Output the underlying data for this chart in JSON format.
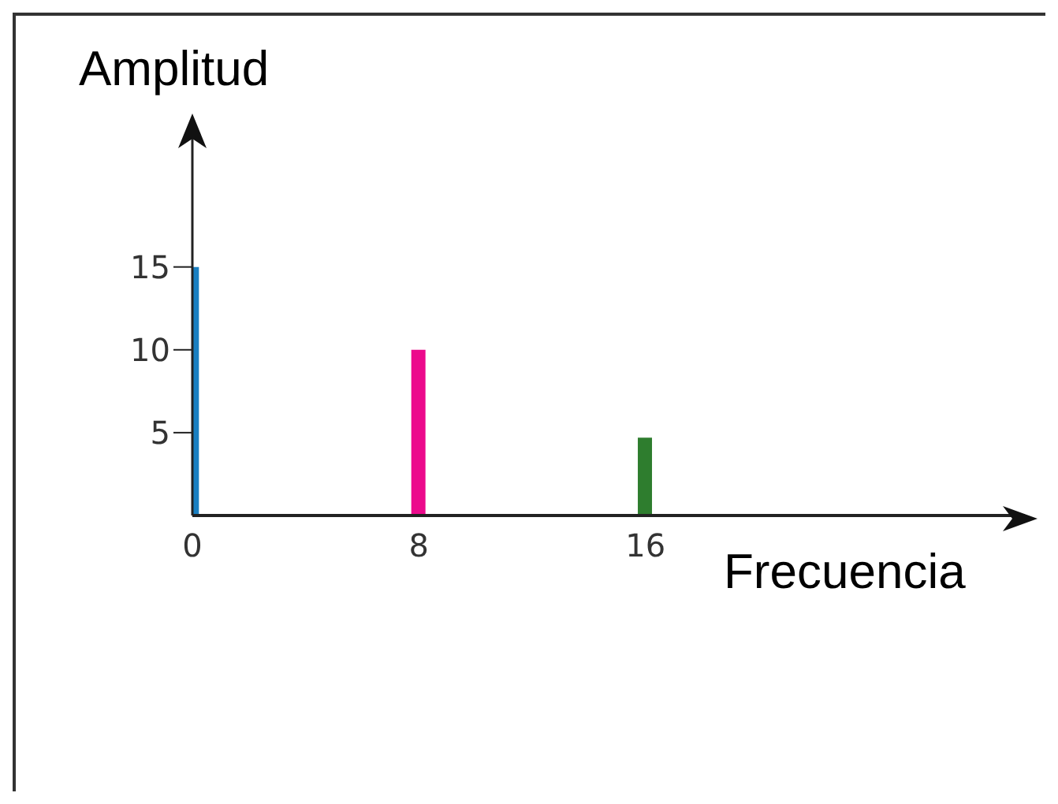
{
  "chart_data": {
    "type": "bar",
    "xlabel": "Frecuencia",
    "ylabel": "Amplitud",
    "x": [
      0,
      8,
      16
    ],
    "values": [
      15,
      10,
      4.7
    ],
    "colors": [
      "#1a7fc1",
      "#ec0a8c",
      "#2e7d2e"
    ],
    "xlim": [
      0,
      29.4
    ],
    "xticks": [
      0,
      8,
      16
    ],
    "ylim": [
      0,
      23.5
    ],
    "yticks": [
      5,
      10,
      15
    ],
    "grid": false,
    "legend": false
  }
}
